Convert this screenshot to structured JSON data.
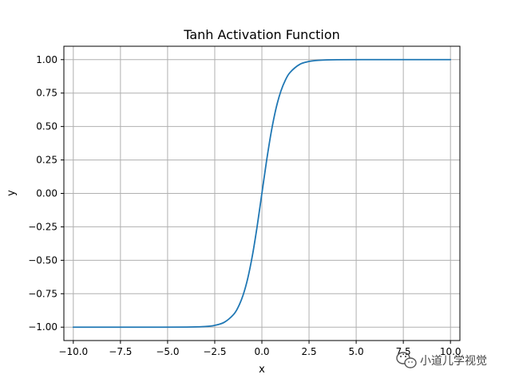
{
  "chart_data": {
    "type": "line",
    "title": "Tanh Activation Function",
    "xlabel": "x",
    "ylabel": "y",
    "xlim": [
      -10.5,
      10.5
    ],
    "ylim": [
      -1.1,
      1.1
    ],
    "x_ticks": [
      -10.0,
      -7.5,
      -5.0,
      -2.5,
      0.0,
      2.5,
      5.0,
      7.5,
      10.0
    ],
    "x_tick_labels": [
      "−10.0",
      "−7.5",
      "−5.0",
      "−2.5",
      "0.0",
      "2.5",
      "5.0",
      "7.5",
      "10.0"
    ],
    "y_ticks": [
      -1.0,
      -0.75,
      -0.5,
      -0.25,
      0.0,
      0.25,
      0.5,
      0.75,
      1.0
    ],
    "y_tick_labels": [
      "−1.00",
      "−0.75",
      "−0.50",
      "−0.25",
      "0.00",
      "0.25",
      "0.50",
      "0.75",
      "1.00"
    ],
    "grid": true,
    "series": [
      {
        "color": "#1f77b4",
        "x": [
          -10,
          -8,
          -6,
          -4,
          -3,
          -2.5,
          -2,
          -1.5,
          -1.25,
          -1,
          -0.75,
          -0.5,
          -0.25,
          0,
          0.25,
          0.5,
          0.75,
          1,
          1.25,
          1.5,
          2,
          2.5,
          3,
          4,
          6,
          8,
          10
        ],
        "y": [
          -1.0,
          -1.0,
          -1.0,
          -0.9993,
          -0.9951,
          -0.9866,
          -0.964,
          -0.9051,
          -0.8483,
          -0.7616,
          -0.6351,
          -0.4621,
          -0.2449,
          0.0,
          0.2449,
          0.4621,
          0.6351,
          0.7616,
          0.8483,
          0.9051,
          0.964,
          0.9866,
          0.9951,
          0.9993,
          1.0,
          1.0,
          1.0
        ]
      }
    ]
  },
  "watermark": {
    "text": "小道儿学视觉",
    "icon": "wechat-icon"
  }
}
